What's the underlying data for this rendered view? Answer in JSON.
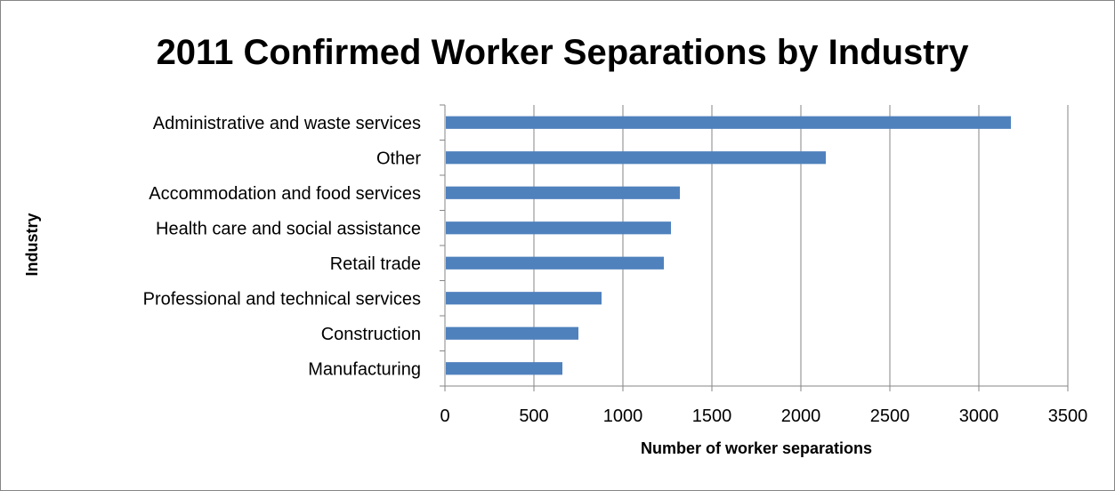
{
  "chart_data": {
    "type": "bar",
    "orientation": "horizontal",
    "title": "2011 Confirmed Worker Separations by Industry",
    "xlabel": "Number of worker separations",
    "ylabel": "Industry",
    "categories": [
      "Administrative and waste services",
      "Other",
      "Accommodation and food services",
      "Health care and social assistance",
      "Retail trade",
      "Professional and technical services",
      "Construction",
      "Manufacturing"
    ],
    "values": [
      3180,
      2140,
      1320,
      1270,
      1230,
      880,
      750,
      660
    ],
    "xlim": [
      0,
      3500
    ],
    "xticks": [
      "0",
      "500",
      "1000",
      "1500",
      "2000",
      "2500",
      "3000",
      "3500"
    ],
    "grid": "vertical",
    "legend": "none",
    "bar_color": "#4F81BD"
  }
}
